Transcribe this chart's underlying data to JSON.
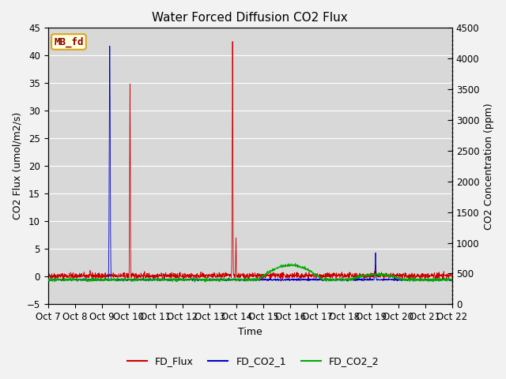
{
  "title": "Water Forced Diffusion CO2 Flux",
  "xlabel": "Time",
  "ylabel_left": "CO2 Flux (umol/m2/s)",
  "ylabel_right": "CO2 Concentration (ppm)",
  "ylim_left": [
    -5,
    45
  ],
  "ylim_right": [
    0,
    4500
  ],
  "yticks_left": [
    -5,
    0,
    5,
    10,
    15,
    20,
    25,
    30,
    35,
    40,
    45
  ],
  "yticks_right": [
    0,
    500,
    1000,
    1500,
    2000,
    2500,
    3000,
    3500,
    4000,
    4500
  ],
  "xtick_labels": [
    "Oct 7",
    "Oct 8",
    "Oct 9",
    "Oct 10",
    "Oct 11",
    "Oct 12",
    "Oct 13",
    "Oct 14",
    "Oct 15",
    "Oct 16",
    "Oct 17",
    "Oct 18",
    "Oct 19",
    "Oct 20",
    "Oct 21",
    "Oct 22"
  ],
  "n_points": 2000,
  "plot_bg_color": "#d8d8d8",
  "fig_bg_color": "#f2f2f2",
  "grid_color": "#ffffff",
  "fd_flux_color": "#cc0000",
  "fd_co2_1_color": "#0000cc",
  "fd_co2_2_color": "#00aa00",
  "legend_label_flux": "FD_Flux",
  "legend_label_co2_1": "FD_CO2_1",
  "legend_label_co2_2": "FD_CO2_2",
  "annotation_text": "MB_fd",
  "title_fontsize": 11,
  "axis_label_fontsize": 9,
  "tick_fontsize": 8.5,
  "legend_fontsize": 9
}
